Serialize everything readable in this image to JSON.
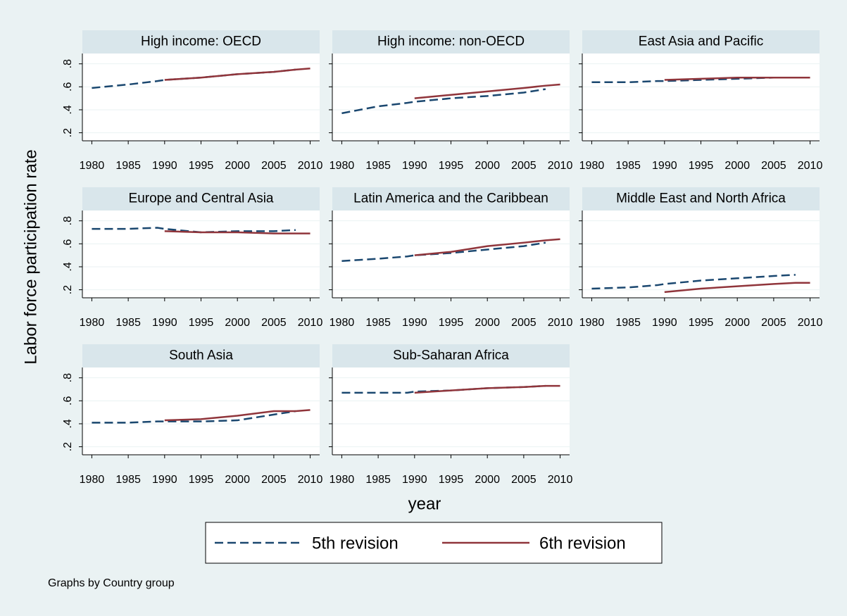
{
  "chart_data": {
    "type": "line",
    "ylabel": "Labor force participation rate",
    "xlabel": "year",
    "note": "Graphs by Country group",
    "xlim": [
      1978.7,
      2011.3
    ],
    "xticks": [
      1980,
      1985,
      1990,
      1995,
      2000,
      2005,
      2010
    ],
    "ylim": [
      0.13,
      0.89
    ],
    "yticks": [
      {
        "value": 0.2,
        "label": ".2"
      },
      {
        "value": 0.4,
        "label": ".4"
      },
      {
        "value": 0.6,
        "label": ".6"
      },
      {
        "value": 0.8,
        "label": ".8"
      }
    ],
    "grid": true,
    "legend": [
      {
        "name": "5th revision",
        "color": "#1a476f",
        "dashed": true
      },
      {
        "name": "6th revision",
        "color": "#90353b",
        "dashed": false
      }
    ],
    "x": [
      1980,
      1985,
      1989,
      1990,
      1995,
      2000,
      2005,
      2008,
      2010
    ],
    "panels": [
      {
        "title": "High income: OECD",
        "series": [
          {
            "values": [
              0.59,
              0.62,
              0.65,
              0.66,
              0.68,
              0.71,
              0.73,
              0.75,
              null
            ]
          },
          {
            "values": [
              null,
              null,
              null,
              0.66,
              0.68,
              0.71,
              0.73,
              0.75,
              0.76
            ]
          }
        ]
      },
      {
        "title": "High income: non-OECD",
        "series": [
          {
            "values": [
              0.37,
              0.43,
              0.46,
              0.47,
              0.5,
              0.52,
              0.55,
              0.58,
              null
            ]
          },
          {
            "values": [
              null,
              null,
              null,
              0.5,
              0.53,
              0.56,
              0.59,
              0.61,
              0.62
            ]
          }
        ]
      },
      {
        "title": "East Asia and Pacific",
        "series": [
          {
            "values": [
              0.64,
              0.64,
              0.65,
              0.65,
              0.66,
              0.67,
              0.68,
              0.68,
              null
            ]
          },
          {
            "values": [
              null,
              null,
              null,
              0.66,
              0.67,
              0.68,
              0.68,
              0.68,
              0.68
            ]
          }
        ]
      },
      {
        "title": "Europe and Central Asia",
        "series": [
          {
            "values": [
              0.73,
              0.73,
              0.74,
              0.73,
              0.7,
              0.71,
              0.71,
              0.72,
              null
            ]
          },
          {
            "values": [
              null,
              null,
              null,
              0.71,
              0.7,
              0.7,
              0.69,
              0.69,
              0.69
            ]
          }
        ]
      },
      {
        "title": "Latin America and the Caribbean",
        "series": [
          {
            "values": [
              0.45,
              0.47,
              0.49,
              0.5,
              0.52,
              0.55,
              0.58,
              0.61,
              null
            ]
          },
          {
            "values": [
              null,
              null,
              null,
              0.5,
              0.53,
              0.58,
              0.61,
              0.63,
              0.64
            ]
          }
        ]
      },
      {
        "title": "Middle East and North Africa",
        "series": [
          {
            "values": [
              0.21,
              0.22,
              0.24,
              0.25,
              0.28,
              0.3,
              0.32,
              0.33,
              null
            ]
          },
          {
            "values": [
              null,
              null,
              null,
              0.18,
              0.21,
              0.23,
              0.25,
              0.26,
              0.26
            ]
          }
        ]
      },
      {
        "title": "South Asia",
        "series": [
          {
            "values": [
              0.41,
              0.41,
              0.42,
              0.42,
              0.42,
              0.43,
              0.48,
              0.51,
              null
            ]
          },
          {
            "values": [
              null,
              null,
              null,
              0.43,
              0.44,
              0.47,
              0.51,
              0.51,
              0.52
            ]
          }
        ]
      },
      {
        "title": "Sub-Saharan Africa",
        "series": [
          {
            "values": [
              0.67,
              0.67,
              0.67,
              0.68,
              0.69,
              0.71,
              0.72,
              0.73,
              null
            ]
          },
          {
            "values": [
              null,
              null,
              null,
              0.67,
              0.69,
              0.71,
              0.72,
              0.73,
              0.73
            ]
          }
        ]
      }
    ]
  }
}
